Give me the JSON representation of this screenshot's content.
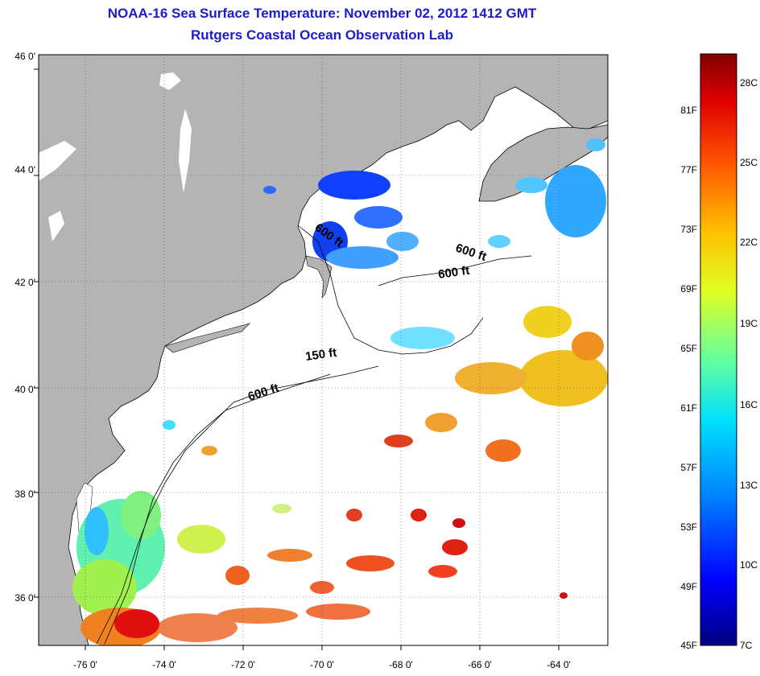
{
  "header": {
    "title": "NOAA-16 Sea Surface Temperature:  November 02, 2012 1412 GMT",
    "subtitle": "Rutgers Coastal Ocean Observation Lab"
  },
  "map": {
    "lat_labels": [
      "46 0'",
      "44 0'",
      "42 0'",
      "40 0'",
      "38 0'",
      "36 0'"
    ],
    "lon_labels": [
      "-76 0'",
      "-74 0'",
      "-72 0'",
      "-70 0'",
      "-68 0'",
      "-66 0'",
      "-64 0'"
    ],
    "depth_labels": [
      "600 ft",
      "600 ft",
      "600 ft",
      "150 ft",
      "600 ft"
    ],
    "land_color": "#b4b4b4",
    "ocean_color": "#ffffff"
  },
  "colorbar": {
    "fahrenheit_labels": [
      "81F",
      "77F",
      "73F",
      "69F",
      "65F",
      "61F",
      "57F",
      "53F",
      "49F",
      "45F"
    ],
    "celsius_labels": [
      "28C",
      "25C",
      "22C",
      "19C",
      "16C",
      "13C",
      "10C",
      "7C"
    ],
    "colors": [
      "#000080",
      "#0000ff",
      "#0080ff",
      "#00e0ff",
      "#60ffa0",
      "#e0ff20",
      "#ffc000",
      "#ff5000",
      "#e00000",
      "#800000"
    ]
  }
}
